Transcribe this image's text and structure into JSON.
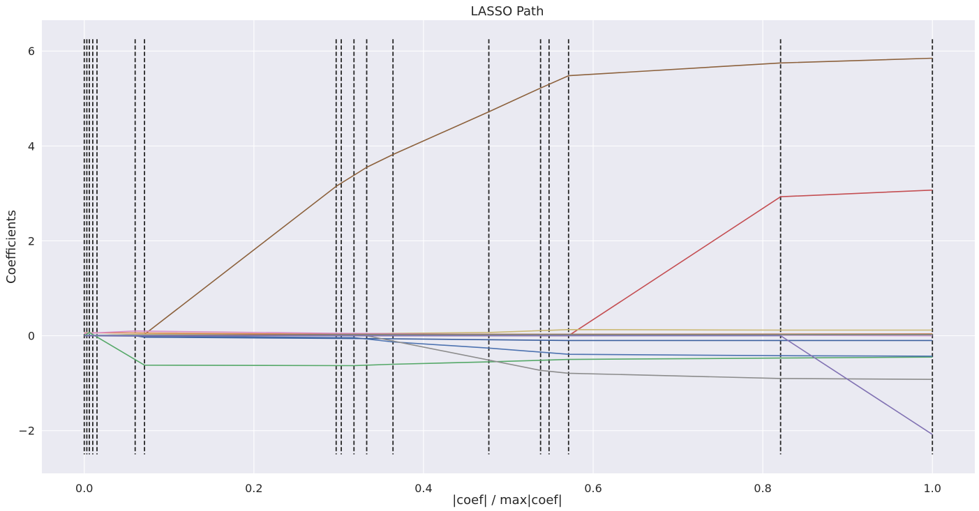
{
  "chart_data": {
    "type": "line",
    "title": "LASSO Path",
    "xlabel": "|coef| / max|coef|",
    "ylabel": "Coefficients",
    "xlim": [
      -0.05,
      1.05
    ],
    "ylim": [
      -2.9,
      6.65
    ],
    "grid": true,
    "xticks": [
      0.0,
      0.2,
      0.4,
      0.6,
      0.8,
      1.0
    ],
    "xtick_labels": [
      "0.0",
      "0.2",
      "0.4",
      "0.6",
      "0.8",
      "1.0"
    ],
    "yticks": [
      -2,
      0,
      2,
      4,
      6
    ],
    "ytick_labels": [
      "−2",
      "0",
      "2",
      "4",
      "6"
    ],
    "vlines": {
      "x": [
        0.0,
        0.003,
        0.006,
        0.01,
        0.015,
        0.06,
        0.071,
        0.297,
        0.303,
        0.318,
        0.333,
        0.364,
        0.477,
        0.538,
        0.548,
        0.571,
        0.821,
        1.0
      ],
      "ymin": -2.5,
      "ymax": 6.25,
      "style": "dashed",
      "color": "#262626"
    },
    "series": [
      {
        "color": "#c44e52",
        "x": [
          0.0,
          0.571,
          0.821,
          1.0
        ],
        "y": [
          0.0,
          0.0,
          2.93,
          3.07
        ]
      },
      {
        "color": "#8c613c",
        "x": [
          0.0,
          0.071,
          0.297,
          0.333,
          0.364,
          0.477,
          0.538,
          0.571,
          0.821,
          1.0
        ],
        "y": [
          0.0,
          0.03,
          3.15,
          3.55,
          3.82,
          4.72,
          5.22,
          5.48,
          5.75,
          5.85
        ]
      },
      {
        "color": "#ccb974",
        "x": [
          0.0,
          0.06,
          0.3,
          0.477,
          0.571,
          0.821,
          1.0
        ],
        "y": [
          0.0,
          0.03,
          0.04,
          0.07,
          0.13,
          0.12,
          0.12
        ]
      },
      {
        "color": "#dd8452",
        "x": [
          0.0,
          0.06,
          0.3,
          0.571,
          1.0
        ],
        "y": [
          0.06,
          0.06,
          0.03,
          0.03,
          0.04
        ]
      },
      {
        "color": "#da8bc3",
        "x": [
          0.0,
          0.06,
          0.3,
          0.571,
          1.0
        ],
        "y": [
          0.05,
          0.1,
          0.05,
          0.02,
          0.0
        ]
      },
      {
        "color": "#64b5cd",
        "x": [
          0.0,
          0.3,
          1.0
        ],
        "y": [
          0.01,
          0.02,
          0.02
        ]
      },
      {
        "color": "#937860",
        "x": [
          0.0,
          0.3,
          1.0
        ],
        "y": [
          0.0,
          0.03,
          0.03
        ]
      },
      {
        "color": "#55a868",
        "x": [
          0.0,
          0.006,
          0.071,
          0.318,
          0.364,
          0.477,
          0.571,
          0.821,
          1.0
        ],
        "y": [
          0.0,
          0.07,
          -0.62,
          -0.63,
          -0.6,
          -0.55,
          -0.5,
          -0.47,
          -0.45
        ]
      },
      {
        "color": "#4c72b0",
        "x": [
          0.0,
          0.3,
          0.318,
          0.364,
          0.477,
          0.571,
          0.821,
          1.0
        ],
        "y": [
          0.0,
          -0.04,
          -0.04,
          -0.13,
          -0.26,
          -0.39,
          -0.42,
          -0.43
        ]
      },
      {
        "color": "#3b5f9e",
        "x": [
          0.0,
          0.06,
          0.071,
          0.333,
          0.571,
          1.0
        ],
        "y": [
          0.0,
          0.0,
          -0.03,
          -0.06,
          -0.1,
          -0.1
        ]
      },
      {
        "color": "#8c8c8c",
        "x": [
          0.0,
          0.333,
          0.538,
          0.571,
          0.821,
          1.0
        ],
        "y": [
          0.0,
          0.0,
          -0.73,
          -0.79,
          -0.9,
          -0.92
        ]
      },
      {
        "color": "#8172b3",
        "x": [
          0.0,
          0.821,
          1.0
        ],
        "y": [
          0.0,
          0.0,
          -2.08
        ]
      }
    ]
  }
}
